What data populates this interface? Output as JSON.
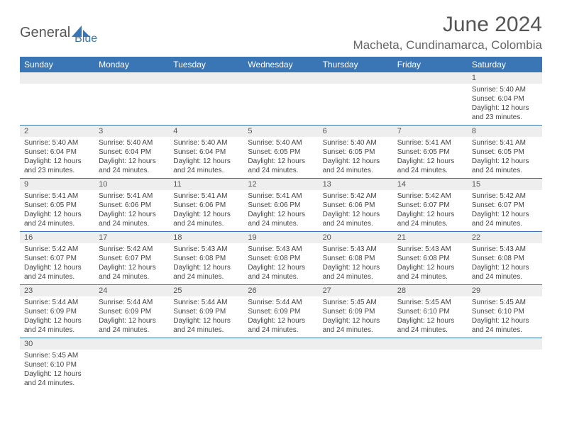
{
  "brand": {
    "part1": "General",
    "part2": "Blue"
  },
  "title": "June 2024",
  "location": "Macheta, Cundinamarca, Colombia",
  "colors": {
    "header_bg": "#3a75b5",
    "header_text": "#ffffff",
    "daynum_bg": "#eeeeee",
    "row_border": "#3a75b5",
    "text": "#444444",
    "title_color": "#555555"
  },
  "weekdays": [
    "Sunday",
    "Monday",
    "Tuesday",
    "Wednesday",
    "Thursday",
    "Friday",
    "Saturday"
  ],
  "weeks": [
    [
      {
        "n": "",
        "sr": "",
        "ss": "",
        "dl": ""
      },
      {
        "n": "",
        "sr": "",
        "ss": "",
        "dl": ""
      },
      {
        "n": "",
        "sr": "",
        "ss": "",
        "dl": ""
      },
      {
        "n": "",
        "sr": "",
        "ss": "",
        "dl": ""
      },
      {
        "n": "",
        "sr": "",
        "ss": "",
        "dl": ""
      },
      {
        "n": "",
        "sr": "",
        "ss": "",
        "dl": ""
      },
      {
        "n": "1",
        "sr": "Sunrise: 5:40 AM",
        "ss": "Sunset: 6:04 PM",
        "dl": "Daylight: 12 hours and 23 minutes."
      }
    ],
    [
      {
        "n": "2",
        "sr": "Sunrise: 5:40 AM",
        "ss": "Sunset: 6:04 PM",
        "dl": "Daylight: 12 hours and 23 minutes."
      },
      {
        "n": "3",
        "sr": "Sunrise: 5:40 AM",
        "ss": "Sunset: 6:04 PM",
        "dl": "Daylight: 12 hours and 24 minutes."
      },
      {
        "n": "4",
        "sr": "Sunrise: 5:40 AM",
        "ss": "Sunset: 6:04 PM",
        "dl": "Daylight: 12 hours and 24 minutes."
      },
      {
        "n": "5",
        "sr": "Sunrise: 5:40 AM",
        "ss": "Sunset: 6:05 PM",
        "dl": "Daylight: 12 hours and 24 minutes."
      },
      {
        "n": "6",
        "sr": "Sunrise: 5:40 AM",
        "ss": "Sunset: 6:05 PM",
        "dl": "Daylight: 12 hours and 24 minutes."
      },
      {
        "n": "7",
        "sr": "Sunrise: 5:41 AM",
        "ss": "Sunset: 6:05 PM",
        "dl": "Daylight: 12 hours and 24 minutes."
      },
      {
        "n": "8",
        "sr": "Sunrise: 5:41 AM",
        "ss": "Sunset: 6:05 PM",
        "dl": "Daylight: 12 hours and 24 minutes."
      }
    ],
    [
      {
        "n": "9",
        "sr": "Sunrise: 5:41 AM",
        "ss": "Sunset: 6:05 PM",
        "dl": "Daylight: 12 hours and 24 minutes."
      },
      {
        "n": "10",
        "sr": "Sunrise: 5:41 AM",
        "ss": "Sunset: 6:06 PM",
        "dl": "Daylight: 12 hours and 24 minutes."
      },
      {
        "n": "11",
        "sr": "Sunrise: 5:41 AM",
        "ss": "Sunset: 6:06 PM",
        "dl": "Daylight: 12 hours and 24 minutes."
      },
      {
        "n": "12",
        "sr": "Sunrise: 5:41 AM",
        "ss": "Sunset: 6:06 PM",
        "dl": "Daylight: 12 hours and 24 minutes."
      },
      {
        "n": "13",
        "sr": "Sunrise: 5:42 AM",
        "ss": "Sunset: 6:06 PM",
        "dl": "Daylight: 12 hours and 24 minutes."
      },
      {
        "n": "14",
        "sr": "Sunrise: 5:42 AM",
        "ss": "Sunset: 6:07 PM",
        "dl": "Daylight: 12 hours and 24 minutes."
      },
      {
        "n": "15",
        "sr": "Sunrise: 5:42 AM",
        "ss": "Sunset: 6:07 PM",
        "dl": "Daylight: 12 hours and 24 minutes."
      }
    ],
    [
      {
        "n": "16",
        "sr": "Sunrise: 5:42 AM",
        "ss": "Sunset: 6:07 PM",
        "dl": "Daylight: 12 hours and 24 minutes."
      },
      {
        "n": "17",
        "sr": "Sunrise: 5:42 AM",
        "ss": "Sunset: 6:07 PM",
        "dl": "Daylight: 12 hours and 24 minutes."
      },
      {
        "n": "18",
        "sr": "Sunrise: 5:43 AM",
        "ss": "Sunset: 6:08 PM",
        "dl": "Daylight: 12 hours and 24 minutes."
      },
      {
        "n": "19",
        "sr": "Sunrise: 5:43 AM",
        "ss": "Sunset: 6:08 PM",
        "dl": "Daylight: 12 hours and 24 minutes."
      },
      {
        "n": "20",
        "sr": "Sunrise: 5:43 AM",
        "ss": "Sunset: 6:08 PM",
        "dl": "Daylight: 12 hours and 24 minutes."
      },
      {
        "n": "21",
        "sr": "Sunrise: 5:43 AM",
        "ss": "Sunset: 6:08 PM",
        "dl": "Daylight: 12 hours and 24 minutes."
      },
      {
        "n": "22",
        "sr": "Sunrise: 5:43 AM",
        "ss": "Sunset: 6:08 PM",
        "dl": "Daylight: 12 hours and 24 minutes."
      }
    ],
    [
      {
        "n": "23",
        "sr": "Sunrise: 5:44 AM",
        "ss": "Sunset: 6:09 PM",
        "dl": "Daylight: 12 hours and 24 minutes."
      },
      {
        "n": "24",
        "sr": "Sunrise: 5:44 AM",
        "ss": "Sunset: 6:09 PM",
        "dl": "Daylight: 12 hours and 24 minutes."
      },
      {
        "n": "25",
        "sr": "Sunrise: 5:44 AM",
        "ss": "Sunset: 6:09 PM",
        "dl": "Daylight: 12 hours and 24 minutes."
      },
      {
        "n": "26",
        "sr": "Sunrise: 5:44 AM",
        "ss": "Sunset: 6:09 PM",
        "dl": "Daylight: 12 hours and 24 minutes."
      },
      {
        "n": "27",
        "sr": "Sunrise: 5:45 AM",
        "ss": "Sunset: 6:09 PM",
        "dl": "Daylight: 12 hours and 24 minutes."
      },
      {
        "n": "28",
        "sr": "Sunrise: 5:45 AM",
        "ss": "Sunset: 6:10 PM",
        "dl": "Daylight: 12 hours and 24 minutes."
      },
      {
        "n": "29",
        "sr": "Sunrise: 5:45 AM",
        "ss": "Sunset: 6:10 PM",
        "dl": "Daylight: 12 hours and 24 minutes."
      }
    ],
    [
      {
        "n": "30",
        "sr": "Sunrise: 5:45 AM",
        "ss": "Sunset: 6:10 PM",
        "dl": "Daylight: 12 hours and 24 minutes."
      },
      {
        "n": "",
        "sr": "",
        "ss": "",
        "dl": ""
      },
      {
        "n": "",
        "sr": "",
        "ss": "",
        "dl": ""
      },
      {
        "n": "",
        "sr": "",
        "ss": "",
        "dl": ""
      },
      {
        "n": "",
        "sr": "",
        "ss": "",
        "dl": ""
      },
      {
        "n": "",
        "sr": "",
        "ss": "",
        "dl": ""
      },
      {
        "n": "",
        "sr": "",
        "ss": "",
        "dl": ""
      }
    ]
  ]
}
